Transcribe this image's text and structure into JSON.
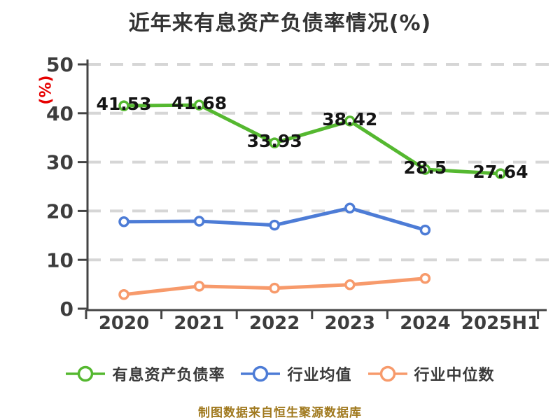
{
  "title": "近年来有息资产负债率情况(%)",
  "footer": "制图数据来自恒生聚源数据库",
  "colors": {
    "title": "#333333",
    "axis": "#444444",
    "tick_label": "#3d3d3d",
    "grid": "#d6d6d6",
    "ylabel": "#e60000",
    "value_label": "#141414",
    "marker_fill": "#ffffff",
    "footer": "#a0791e",
    "series_green": "#55b830",
    "series_blue": "#4d7cd6",
    "series_orange": "#f79a6b"
  },
  "chart_data": {
    "type": "line",
    "title": "近年来有息资产负债率情况(%)",
    "categories": [
      "2020",
      "2021",
      "2022",
      "2023",
      "2024",
      "2025H1"
    ],
    "xlabel": "",
    "ylabel": "(%)",
    "ylim": [
      0,
      50
    ],
    "yticks": [
      0,
      10,
      20,
      30,
      40,
      50
    ],
    "grid": "horizontal-dashed",
    "legend_position": "bottom",
    "series": [
      {
        "name": "有息资产负债率",
        "color": "#55b830",
        "values": [
          41.53,
          41.68,
          33.93,
          38.42,
          28.5,
          27.64
        ],
        "point_labels": [
          "41.53",
          "41.68",
          "33.93",
          "38.42",
          "28.5",
          "27.64"
        ],
        "show_labels": true
      },
      {
        "name": "行业均值",
        "color": "#4d7cd6",
        "values": [
          17.8,
          17.9,
          17.1,
          20.6,
          16.1
        ],
        "show_labels": false
      },
      {
        "name": "行业中位数",
        "color": "#f79a6b",
        "values": [
          2.9,
          4.6,
          4.2,
          4.9,
          6.2
        ],
        "show_labels": false
      }
    ]
  }
}
